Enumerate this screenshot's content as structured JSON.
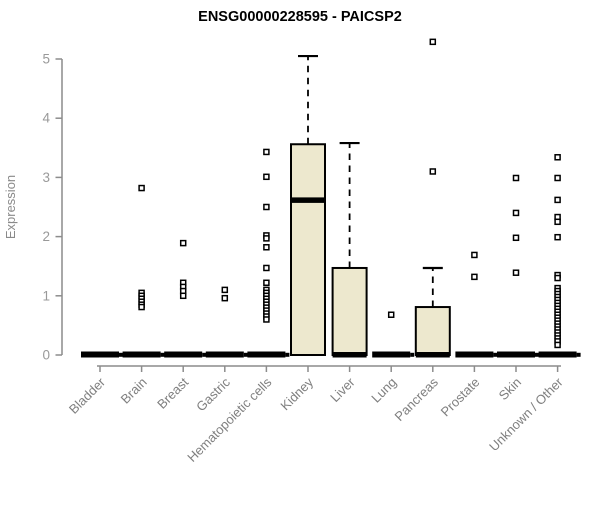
{
  "chart_data": {
    "type": "boxplot",
    "title": "ENSG00000228595 - PAICSP2",
    "xlabel": "",
    "ylabel": "Expression",
    "ylim": [
      0,
      5
    ],
    "y_ticks": [
      0,
      1,
      2,
      3,
      4,
      5
    ],
    "grid": false,
    "legend": "none",
    "box_fill": "#EDE8CE",
    "box_stroke": "#000000",
    "axis_color": "#8C8C8C",
    "tick_label_color": "#999999",
    "category_label_color": "#7F7F7F",
    "title_color": "#000000",
    "categories": [
      "Bladder",
      "Brain",
      "Breast",
      "Gastric",
      "Hematopoietic cells",
      "Kidney",
      "Liver",
      "Lung",
      "Pancreas",
      "Prostate",
      "Skin",
      "Unknown / Other"
    ],
    "series": [
      {
        "category": "Bladder",
        "q1": 0,
        "median": 0,
        "q3": 0,
        "whisker_low": 0,
        "whisker_high": 0,
        "outliers": []
      },
      {
        "category": "Brain",
        "q1": 0,
        "median": 0,
        "q3": 0,
        "whisker_low": 0,
        "whisker_high": 0,
        "outliers": [
          2.82,
          1.05,
          1.0,
          0.95,
          0.9,
          0.85,
          0.81
        ]
      },
      {
        "category": "Breast",
        "q1": 0,
        "median": 0,
        "q3": 0,
        "whisker_low": 0,
        "whisker_high": 0,
        "outliers": [
          1.89,
          1.22,
          1.15,
          1.08,
          1.0
        ]
      },
      {
        "category": "Gastric",
        "q1": 0,
        "median": 0,
        "q3": 0,
        "whisker_low": 0,
        "whisker_high": 0,
        "outliers": [
          1.1,
          0.96
        ]
      },
      {
        "category": "Hematopoietic cells",
        "q1": 0,
        "median": 0,
        "q3": 0,
        "whisker_low": 0,
        "whisker_high": 0,
        "outliers": [
          3.43,
          3.01,
          2.5,
          2.02,
          1.97,
          1.82,
          1.47,
          1.22,
          1.1,
          1.05,
          1.0,
          0.95,
          0.9,
          0.85,
          0.8,
          0.75,
          0.7,
          0.65,
          0.6
        ]
      },
      {
        "category": "Kidney",
        "q1": 0,
        "median": 2.62,
        "q3": 3.56,
        "whisker_low": 0,
        "whisker_high": 5.05,
        "outliers": []
      },
      {
        "category": "Liver",
        "q1": 0,
        "median": 0,
        "q3": 1.47,
        "whisker_low": 0,
        "whisker_high": 3.58,
        "outliers": []
      },
      {
        "category": "Lung",
        "q1": 0,
        "median": 0,
        "q3": 0,
        "whisker_low": 0,
        "whisker_high": 0,
        "outliers": [
          0.68
        ]
      },
      {
        "category": "Pancreas",
        "q1": 0,
        "median": 0,
        "q3": 0.81,
        "whisker_low": 0,
        "whisker_high": 1.47,
        "outliers": [
          5.29,
          3.1
        ]
      },
      {
        "category": "Prostate",
        "q1": 0,
        "median": 0,
        "q3": 0,
        "whisker_low": 0,
        "whisker_high": 0,
        "outliers": [
          1.69,
          1.32
        ]
      },
      {
        "category": "Skin",
        "q1": 0,
        "median": 0,
        "q3": 0,
        "whisker_low": 0,
        "whisker_high": 0,
        "outliers": [
          2.99,
          2.4,
          1.98,
          1.39
        ]
      },
      {
        "category": "Unknown / Other",
        "q1": 0,
        "median": 0,
        "q3": 0,
        "whisker_low": 0,
        "whisker_high": 0,
        "outliers": [
          3.34,
          2.99,
          2.62,
          2.33,
          2.25,
          1.99,
          1.35,
          1.3,
          1.13,
          1.08,
          1.03,
          0.98,
          0.93,
          0.88,
          0.83,
          0.78,
          0.73,
          0.68,
          0.63,
          0.58,
          0.53,
          0.48,
          0.43,
          0.38,
          0.33,
          0.28,
          0.23,
          0.17
        ]
      }
    ]
  }
}
